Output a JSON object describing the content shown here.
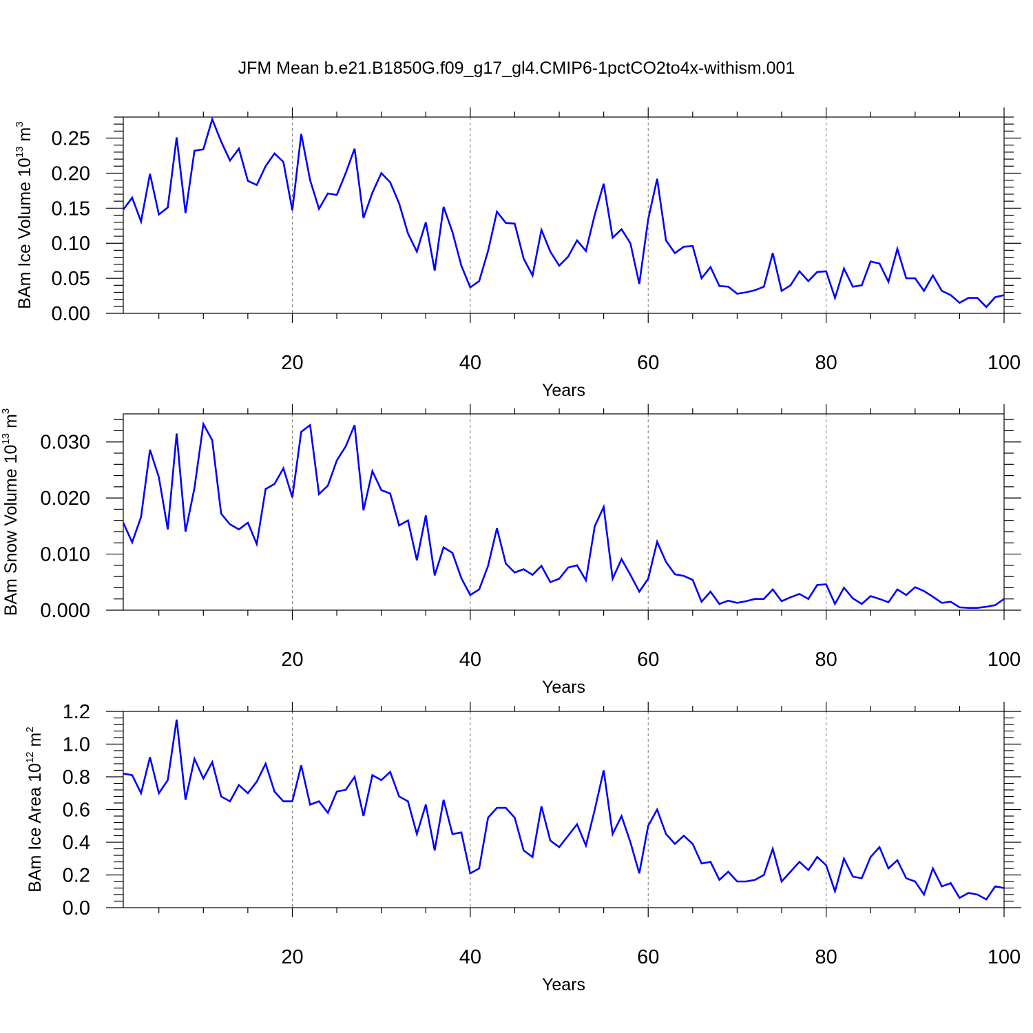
{
  "title": "JFM Mean b.e21.B1850G.f09_g17_gl4.CMIP6-1pctCO2to4x-withism.001",
  "colors": {
    "line": "#0000ff",
    "axes": "#000000",
    "grid": "#777777"
  },
  "chart_data": [
    {
      "type": "line",
      "name": "ice-volume",
      "ylabel": "BAm Ice Volume",
      "ylabel_unit_base": "10",
      "ylabel_unit_exp": "13",
      "ylabel_unit_tail": " m",
      "ylabel_unit_tail_exp": "3",
      "xlabel": "Years",
      "xlim": [
        1,
        100
      ],
      "ylim": [
        0,
        0.28
      ],
      "xticks": [
        20,
        40,
        60,
        80,
        100
      ],
      "xtick_labels": [
        "20",
        "40",
        "60",
        "80",
        "100"
      ],
      "yticks": [
        0,
        0.05,
        0.1,
        0.15,
        0.2,
        0.25
      ],
      "ytick_labels": [
        "0.00",
        "0.05",
        "0.10",
        "0.15",
        "0.20",
        "0.25"
      ],
      "grid_x": [
        20,
        40,
        60,
        80
      ],
      "x_start": 1,
      "values": [
        0.148,
        0.165,
        0.131,
        0.199,
        0.141,
        0.151,
        0.251,
        0.143,
        0.232,
        0.234,
        0.277,
        0.245,
        0.218,
        0.235,
        0.189,
        0.183,
        0.21,
        0.228,
        0.216,
        0.147,
        0.256,
        0.19,
        0.149,
        0.171,
        0.169,
        0.2,
        0.235,
        0.136,
        0.172,
        0.2,
        0.187,
        0.157,
        0.114,
        0.088,
        0.13,
        0.061,
        0.152,
        0.116,
        0.068,
        0.037,
        0.046,
        0.089,
        0.145,
        0.129,
        0.128,
        0.078,
        0.054,
        0.119,
        0.088,
        0.068,
        0.081,
        0.104,
        0.089,
        0.141,
        0.185,
        0.108,
        0.12,
        0.1,
        0.042,
        0.134,
        0.192,
        0.104,
        0.086,
        0.095,
        0.096,
        0.05,
        0.066,
        0.039,
        0.038,
        0.028,
        0.03,
        0.033,
        0.038,
        0.086,
        0.032,
        0.04,
        0.06,
        0.046,
        0.059,
        0.06,
        0.022,
        0.064,
        0.038,
        0.04,
        0.074,
        0.071,
        0.045,
        0.092,
        0.05,
        0.05,
        0.032,
        0.054,
        0.032,
        0.026,
        0.015,
        0.022,
        0.022,
        0.009,
        0.023,
        0.026
      ]
    },
    {
      "type": "line",
      "name": "snow-volume",
      "ylabel": "BAm Snow Volume",
      "ylabel_unit_base": "10",
      "ylabel_unit_exp": "13",
      "ylabel_unit_tail": " m",
      "ylabel_unit_tail_exp": "3",
      "xlabel": "Years",
      "xlim": [
        1,
        100
      ],
      "ylim": [
        0,
        0.035
      ],
      "xticks": [
        20,
        40,
        60,
        80,
        100
      ],
      "xtick_labels": [
        "20",
        "40",
        "60",
        "80",
        "100"
      ],
      "yticks": [
        0,
        0.01,
        0.02,
        0.03
      ],
      "ytick_labels": [
        "0.000",
        "0.010",
        "0.020",
        "0.030"
      ],
      "grid_x": [
        20,
        40,
        60,
        80
      ],
      "x_start": 1,
      "values": [
        0.0156,
        0.0121,
        0.0166,
        0.0286,
        0.0237,
        0.0144,
        0.0315,
        0.014,
        0.0218,
        0.0332,
        0.0303,
        0.0172,
        0.0153,
        0.0144,
        0.0156,
        0.0118,
        0.0216,
        0.0225,
        0.0253,
        0.0201,
        0.0318,
        0.033,
        0.0207,
        0.0222,
        0.0267,
        0.0292,
        0.033,
        0.0178,
        0.0248,
        0.0214,
        0.0208,
        0.0151,
        0.016,
        0.0089,
        0.0169,
        0.0062,
        0.0112,
        0.0102,
        0.0057,
        0.0027,
        0.0037,
        0.0079,
        0.0146,
        0.0083,
        0.0067,
        0.0073,
        0.0063,
        0.0079,
        0.005,
        0.0056,
        0.0076,
        0.008,
        0.0053,
        0.015,
        0.0184,
        0.0056,
        0.0091,
        0.0063,
        0.0033,
        0.0056,
        0.0122,
        0.0086,
        0.0064,
        0.0061,
        0.0054,
        0.0015,
        0.0033,
        0.0011,
        0.0017,
        0.0013,
        0.0016,
        0.002,
        0.002,
        0.0037,
        0.0016,
        0.0023,
        0.0029,
        0.002,
        0.0045,
        0.0046,
        0.0011,
        0.004,
        0.0021,
        0.0011,
        0.0025,
        0.002,
        0.0014,
        0.0037,
        0.0027,
        0.0041,
        0.0034,
        0.0024,
        0.0013,
        0.0015,
        0.0005,
        0.0004,
        0.0004,
        0.0006,
        0.0009,
        0.002
      ]
    },
    {
      "type": "line",
      "name": "ice-area",
      "ylabel": "BAm Ice Area",
      "ylabel_unit_base": "10",
      "ylabel_unit_exp": "12",
      "ylabel_unit_tail": " m",
      "ylabel_unit_tail_exp": "2",
      "xlabel": "Years",
      "xlim": [
        1,
        100
      ],
      "ylim": [
        0,
        1.2
      ],
      "xticks": [
        20,
        40,
        60,
        80,
        100
      ],
      "xtick_labels": [
        "20",
        "40",
        "60",
        "80",
        "100"
      ],
      "yticks": [
        0,
        0.2,
        0.4,
        0.6,
        0.8,
        1.0,
        1.2
      ],
      "ytick_labels": [
        "0.0",
        "0.2",
        "0.4",
        "0.6",
        "0.8",
        "1.0",
        "1.2"
      ],
      "grid_x": [
        20,
        40,
        60,
        80
      ],
      "x_start": 1,
      "values": [
        0.82,
        0.81,
        0.7,
        0.92,
        0.7,
        0.78,
        1.15,
        0.66,
        0.91,
        0.79,
        0.89,
        0.68,
        0.65,
        0.75,
        0.7,
        0.77,
        0.88,
        0.71,
        0.65,
        0.65,
        0.87,
        0.63,
        0.65,
        0.58,
        0.71,
        0.72,
        0.8,
        0.56,
        0.81,
        0.78,
        0.83,
        0.68,
        0.65,
        0.45,
        0.63,
        0.35,
        0.66,
        0.45,
        0.46,
        0.21,
        0.24,
        0.55,
        0.61,
        0.61,
        0.55,
        0.35,
        0.31,
        0.62,
        0.41,
        0.37,
        0.44,
        0.51,
        0.38,
        0.6,
        0.84,
        0.45,
        0.56,
        0.4,
        0.21,
        0.5,
        0.6,
        0.45,
        0.39,
        0.44,
        0.39,
        0.27,
        0.28,
        0.17,
        0.22,
        0.16,
        0.16,
        0.17,
        0.2,
        0.36,
        0.16,
        0.22,
        0.28,
        0.23,
        0.31,
        0.26,
        0.1,
        0.3,
        0.19,
        0.18,
        0.31,
        0.37,
        0.24,
        0.29,
        0.18,
        0.16,
        0.08,
        0.24,
        0.13,
        0.15,
        0.06,
        0.09,
        0.08,
        0.05,
        0.13,
        0.12
      ]
    }
  ]
}
